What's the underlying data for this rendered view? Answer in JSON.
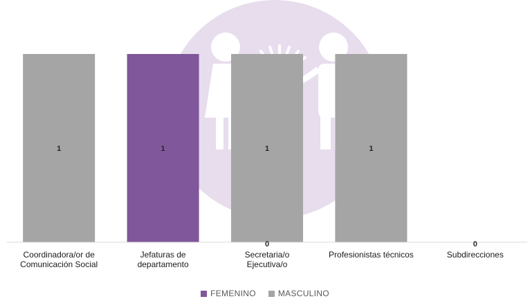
{
  "chart_data": {
    "type": "bar",
    "categories": [
      [
        "Coordinadora/or de",
        "Comunicación Social"
      ],
      [
        "Jefaturas de",
        "departamento"
      ],
      [
        "Secretaria/o",
        "Ejecutiva/o"
      ],
      [
        "Profesionistas técnicos"
      ],
      [
        "Subdirecciones"
      ]
    ],
    "series": [
      {
        "name": "FEMENINO",
        "color": "#80579a",
        "values": [
          0,
          1,
          0,
          0,
          0
        ]
      },
      {
        "name": "MASCULINO",
        "color": "#a5a5a5",
        "values": [
          1,
          0,
          1,
          1,
          0
        ]
      }
    ],
    "bar_totals": [
      1,
      1,
      1,
      1,
      0
    ],
    "point_labels": [
      {
        "category": 0,
        "value": "1"
      },
      {
        "category": 1,
        "value": "1"
      },
      {
        "category": 2,
        "value": "1"
      },
      {
        "category": 2,
        "value": "0"
      },
      {
        "category": 3,
        "value": "1"
      },
      {
        "category": 4,
        "value": "0"
      }
    ],
    "full_bar_labels": [
      "1",
      "1",
      "1",
      "1",
      ""
    ],
    "zero_labels": [
      "",
      "",
      "0",
      "",
      "0"
    ],
    "ylim": [
      0,
      1
    ],
    "grid": false,
    "legend_position": "bottom"
  },
  "watermark": {
    "icon": "family-logo-icon",
    "color": "#e6dcec"
  }
}
